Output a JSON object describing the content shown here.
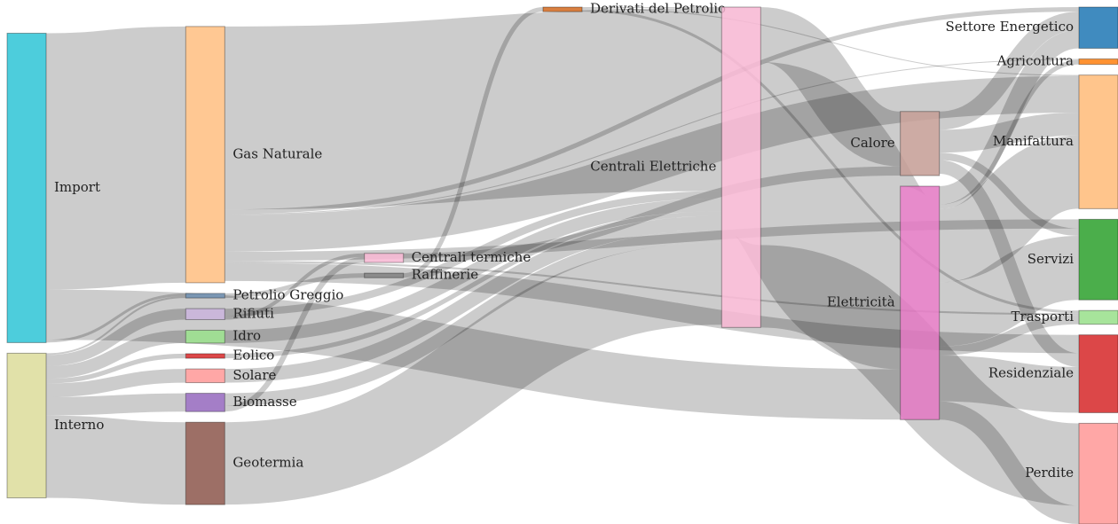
{
  "chart_data": {
    "type": "sankey",
    "nodes": [
      {
        "name": "Import",
        "color": "#2ec4d6"
      },
      {
        "name": "Interno",
        "color": "#dcdc9a"
      },
      {
        "name": "Gas Naturale",
        "color": "#ffbe80"
      },
      {
        "name": "Petrolio Greggio",
        "color": "#6b8cae"
      },
      {
        "name": "Rifiuti",
        "color": "#c9b3dc"
      },
      {
        "name": "Idro",
        "color": "#98df8a"
      },
      {
        "name": "Eolico",
        "color": "#d62728"
      },
      {
        "name": "Solare",
        "color": "#ff9896"
      },
      {
        "name": "Biomasse",
        "color": "#9467bd"
      },
      {
        "name": "Geotermia",
        "color": "#8c564b"
      },
      {
        "name": "Centrali termiche",
        "color": "#f7b6d2"
      },
      {
        "name": "Raffinerie",
        "color": "#7f7f7f"
      },
      {
        "name": "Derivati del Petrolio",
        "color": "#d2691e"
      },
      {
        "name": "Centrali Elettriche",
        "color": "#f7b6d2"
      },
      {
        "name": "Calore",
        "color": "#c49c94"
      },
      {
        "name": "Elettricità",
        "color": "#e377c2"
      },
      {
        "name": "Settore Energetico",
        "color": "#1f77b4"
      },
      {
        "name": "Agricoltura",
        "color": "#ff7f0e"
      },
      {
        "name": "Manifattura",
        "color": "#ffbb78"
      },
      {
        "name": "Servizi",
        "color": "#2ca02c"
      },
      {
        "name": "Trasporti",
        "color": "#98df8a"
      },
      {
        "name": "Residenziale",
        "color": "#d62728"
      },
      {
        "name": "Perdite",
        "color": "#ff9896"
      }
    ],
    "links": [
      {
        "source": "Import",
        "target": "Gas Naturale",
        "value": 280
      },
      {
        "source": "Import",
        "target": "Petrolio Greggio",
        "value": 3
      },
      {
        "source": "Import",
        "target": "Elettricità",
        "value": 55
      },
      {
        "source": "Interno",
        "target": "Petrolio Greggio",
        "value": 2
      },
      {
        "source": "Interno",
        "target": "Rifiuti",
        "value": 12
      },
      {
        "source": "Interno",
        "target": "Idro",
        "value": 14
      },
      {
        "source": "Interno",
        "target": "Eolico",
        "value": 5
      },
      {
        "source": "Interno",
        "target": "Solare",
        "value": 15
      },
      {
        "source": "Interno",
        "target": "Biomasse",
        "value": 20
      },
      {
        "source": "Interno",
        "target": "Geotermia",
        "value": 90
      },
      {
        "source": "Gas Naturale",
        "target": "Centrali Elettriche",
        "value": 200
      },
      {
        "source": "Gas Naturale",
        "target": "Settore Energetico",
        "value": 5
      },
      {
        "source": "Gas Naturale",
        "target": "Agricoltura",
        "value": 1
      },
      {
        "source": "Gas Naturale",
        "target": "Manifattura",
        "value": 40
      },
      {
        "source": "Gas Naturale",
        "target": "Servizi",
        "value": 10
      },
      {
        "source": "Gas Naturale",
        "target": "Trasporti",
        "value": 2
      },
      {
        "source": "Gas Naturale",
        "target": "Residenziale",
        "value": 20
      },
      {
        "source": "Petrolio Greggio",
        "target": "Raffinerie",
        "value": 5
      },
      {
        "source": "Raffinerie",
        "target": "Derivati del Petrolio",
        "value": 5
      },
      {
        "source": "Derivati del Petrolio",
        "target": "Centrali Elettriche",
        "value": 1
      },
      {
        "source": "Derivati del Petrolio",
        "target": "Manifattura",
        "value": 1
      },
      {
        "source": "Derivati del Petrolio",
        "target": "Trasporti",
        "value": 3
      },
      {
        "source": "Rifiuti",
        "target": "Centrali termiche",
        "value": 4
      },
      {
        "source": "Rifiuti",
        "target": "Centrali Elettriche",
        "value": 8
      },
      {
        "source": "Idro",
        "target": "Centrali Elettriche",
        "value": 14
      },
      {
        "source": "Eolico",
        "target": "Centrali Elettriche",
        "value": 5
      },
      {
        "source": "Solare",
        "target": "Centrali Elettriche",
        "value": 15
      },
      {
        "source": "Biomasse",
        "target": "Centrali termiche",
        "value": 6
      },
      {
        "source": "Biomasse",
        "target": "Centrali Elettriche",
        "value": 14
      },
      {
        "source": "Geotermia",
        "target": "Centrali Elettriche",
        "value": 90
      },
      {
        "source": "Centrali termiche",
        "target": "Calore",
        "value": 10
      },
      {
        "source": "Centrali Elettriche",
        "target": "Calore",
        "value": 60
      },
      {
        "source": "Centrali Elettriche",
        "target": "Elettricità",
        "value": 200
      },
      {
        "source": "Centrali Elettriche",
        "target": "Perdite",
        "value": 90
      },
      {
        "source": "Calore",
        "target": "Settore Energetico",
        "value": 20
      },
      {
        "source": "Calore",
        "target": "Manifattura",
        "value": 25
      },
      {
        "source": "Calore",
        "target": "Servizi",
        "value": 8
      },
      {
        "source": "Calore",
        "target": "Residenziale",
        "value": 15
      },
      {
        "source": "Elettricità",
        "target": "Settore Energetico",
        "value": 20
      },
      {
        "source": "Elettricità",
        "target": "Agricoltura",
        "value": 5
      },
      {
        "source": "Elettricità",
        "target": "Manifattura",
        "value": 80
      },
      {
        "source": "Elettricità",
        "target": "Servizi",
        "value": 70
      },
      {
        "source": "Elettricità",
        "target": "Trasporti",
        "value": 10
      },
      {
        "source": "Elettricità",
        "target": "Residenziale",
        "value": 50
      },
      {
        "source": "Elettricità",
        "target": "Perdite",
        "value": 20
      }
    ]
  }
}
